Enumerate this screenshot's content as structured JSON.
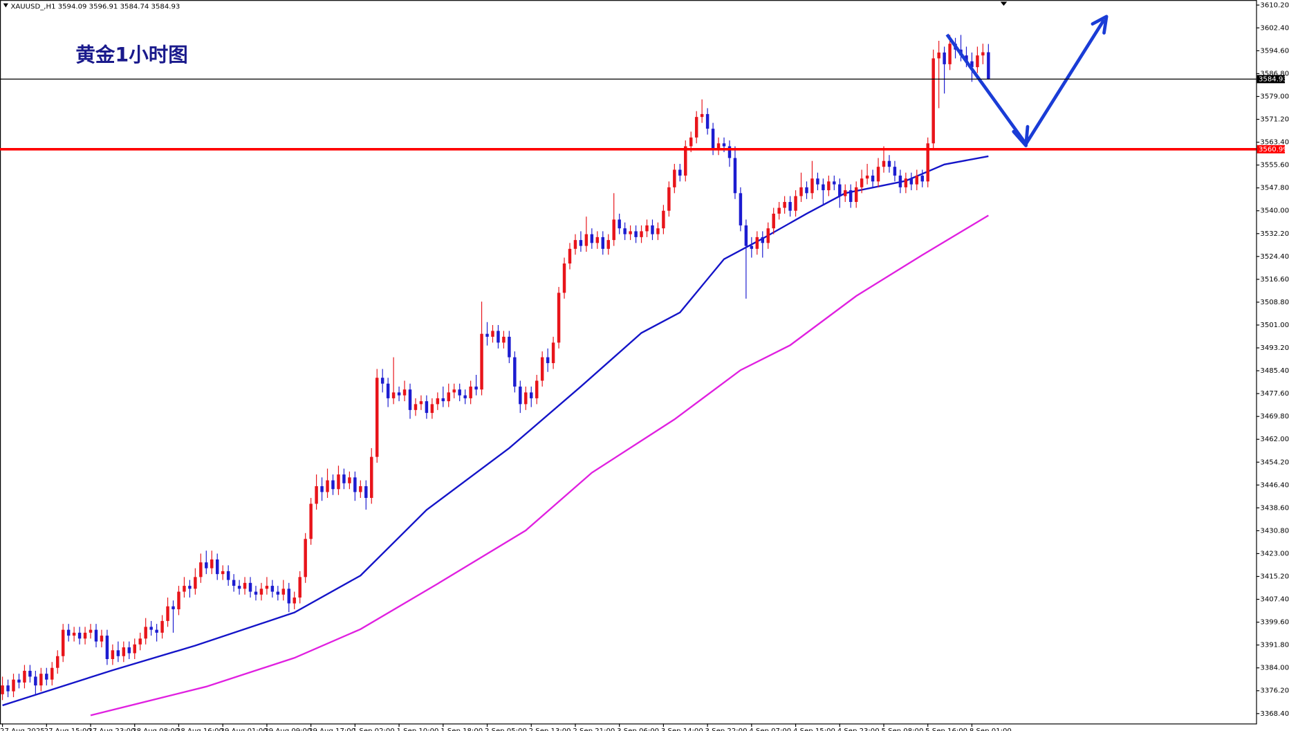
{
  "chart_data": {
    "type": "candlestick",
    "header": "XAUUSD_,H1 3594.09 3596.91 3584.74 3584.93",
    "title": "黄金1小时图",
    "up_color": "#e8141a",
    "down_color": "#1c1cd0",
    "grid": false,
    "xlim": [
      -0.45,
      227.6
    ],
    "ylim": [
      3365.0,
      3611.9
    ],
    "xticks": [
      {
        "value": 0,
        "label": "27 Aug 2025"
      },
      {
        "value": 8,
        "label": "27 Aug 15:00"
      },
      {
        "value": 16,
        "label": "27 Aug 23:00"
      },
      {
        "value": 24,
        "label": "28 Aug 08:00"
      },
      {
        "value": 32,
        "label": "28 Aug 16:00"
      },
      {
        "value": 40,
        "label": "29 Aug 01:00"
      },
      {
        "value": 48,
        "label": "29 Aug 09:00"
      },
      {
        "value": 56,
        "label": "29 Aug 17:00"
      },
      {
        "value": 64,
        "label": "1 Sep 02:00"
      },
      {
        "value": 72,
        "label": "1 Sep 10:00"
      },
      {
        "value": 80,
        "label": "1 Sep 18:00"
      },
      {
        "value": 88,
        "label": "2 Sep 05:00"
      },
      {
        "value": 96,
        "label": "2 Sep 13:00"
      },
      {
        "value": 104,
        "label": "2 Sep 21:00"
      },
      {
        "value": 112,
        "label": "3 Sep 06:00"
      },
      {
        "value": 120,
        "label": "3 Sep 14:00"
      },
      {
        "value": 128,
        "label": "3 Sep 22:00"
      },
      {
        "value": 136,
        "label": "4 Sep 07:00"
      },
      {
        "value": 144,
        "label": "4 Sep 15:00"
      },
      {
        "value": 152,
        "label": "4 Sep 23:00"
      },
      {
        "value": 160,
        "label": "5 Sep 08:00"
      },
      {
        "value": 168,
        "label": "5 Sep 16:00"
      },
      {
        "value": 176,
        "label": "8 Sep 01:00"
      }
    ],
    "yticks": [
      {
        "value": 3610.2,
        "label": "3610.20"
      },
      {
        "value": 3602.4,
        "label": "3602.40"
      },
      {
        "value": 3594.6,
        "label": "3594.60"
      },
      {
        "value": 3586.8,
        "label": "3586.80"
      },
      {
        "value": 3579,
        "label": "3579.00"
      },
      {
        "value": 3571.2,
        "label": "3571.20"
      },
      {
        "value": 3563.4,
        "label": "3563.40"
      },
      {
        "value": 3555.6,
        "label": "3555.60"
      },
      {
        "value": 3547.8,
        "label": "3547.80"
      },
      {
        "value": 3540,
        "label": "3540.00"
      },
      {
        "value": 3532.2,
        "label": "3532.20"
      },
      {
        "value": 3524.4,
        "label": "3524.40"
      },
      {
        "value": 3516.6,
        "label": "3516.60"
      },
      {
        "value": 3508.8,
        "label": "3508.80"
      },
      {
        "value": 3501,
        "label": "3501.00"
      },
      {
        "value": 3493.2,
        "label": "3493.20"
      },
      {
        "value": 3485.4,
        "label": "3485.40"
      },
      {
        "value": 3477.6,
        "label": "3477.60"
      },
      {
        "value": 3469.8,
        "label": "3469.80"
      },
      {
        "value": 3462,
        "label": "3462.00"
      },
      {
        "value": 3454.2,
        "label": "3454.20"
      },
      {
        "value": 3446.4,
        "label": "3446.40"
      },
      {
        "value": 3438.6,
        "label": "3438.60"
      },
      {
        "value": 3430.8,
        "label": "3430.80"
      },
      {
        "value": 3423,
        "label": "3423.00"
      },
      {
        "value": 3415.2,
        "label": "3415.20"
      },
      {
        "value": 3407.4,
        "label": "3407.40"
      },
      {
        "value": 3399.6,
        "label": "3399.60"
      },
      {
        "value": 3391.8,
        "label": "3391.80"
      },
      {
        "value": 3384,
        "label": "3384.00"
      },
      {
        "value": 3376.2,
        "label": "3376.20"
      },
      {
        "value": 3368.4,
        "label": "3368.40"
      }
    ],
    "hlines": [
      {
        "value": 3560.99,
        "label": "3560.99",
        "color": "#ff0000"
      },
      {
        "value": 3584.93,
        "label": "3584.93",
        "color": "#000000"
      }
    ],
    "lines": [
      {
        "color": "#1414c8",
        "x": [
          0,
          20,
          35,
          53,
          65,
          77,
          92,
          105,
          116,
          123,
          131,
          138,
          146,
          153,
          164,
          171,
          179
        ],
        "values": [
          3371.2,
          3383.2,
          3391.6,
          3402.9,
          3415.5,
          3437.9,
          3459,
          3480,
          3498.3,
          3505.3,
          3523.5,
          3530.5,
          3539,
          3546,
          3550.2,
          3555.8,
          3558.6
        ]
      },
      {
        "color": "#e020e0",
        "x": [
          16,
          37,
          53,
          65,
          79,
          95,
          107,
          122,
          134,
          143,
          155,
          167,
          179
        ],
        "values": [
          3367.8,
          3377.6,
          3387.4,
          3397.2,
          3412.7,
          3430.9,
          3450.6,
          3468.8,
          3485.6,
          3494.1,
          3510.9,
          3524.9,
          3538.4
        ]
      }
    ],
    "ohlc": [
      [
        3375,
        3381,
        3373,
        3378
      ],
      [
        3378,
        3380,
        3374,
        3376
      ],
      [
        3376,
        3382,
        3374,
        3380
      ],
      [
        3380,
        3382,
        3377,
        3379
      ],
      [
        3379,
        3385,
        3377,
        3383
      ],
      [
        3383,
        3385,
        3379,
        3381
      ],
      [
        3381,
        3383,
        3375,
        3378
      ],
      [
        3378,
        3384,
        3376,
        3382
      ],
      [
        3382,
        3384,
        3378,
        3380
      ],
      [
        3380,
        3386,
        3378,
        3384
      ],
      [
        3384,
        3390,
        3382,
        3388
      ],
      [
        3388,
        3399,
        3386,
        3397
      ],
      [
        3397,
        3399,
        3393,
        3395
      ],
      [
        3395,
        3398,
        3393,
        3396
      ],
      [
        3396,
        3398,
        3392,
        3394
      ],
      [
        3394,
        3398,
        3392,
        3396
      ],
      [
        3396,
        3399,
        3394,
        3397
      ],
      [
        3397,
        3399,
        3391,
        3393
      ],
      [
        3393,
        3397,
        3391,
        3395
      ],
      [
        3395,
        3397,
        3385,
        3387
      ],
      [
        3387,
        3392,
        3385,
        3390
      ],
      [
        3390,
        3393,
        3386,
        3388
      ],
      [
        3388,
        3393,
        3386,
        3391
      ],
      [
        3391,
        3393,
        3387,
        3389
      ],
      [
        3389,
        3394,
        3387,
        3392
      ],
      [
        3392,
        3396,
        3390,
        3394
      ],
      [
        3394,
        3401,
        3392,
        3398
      ],
      [
        3398,
        3400,
        3395,
        3397
      ],
      [
        3397,
        3399,
        3393,
        3396
      ],
      [
        3396,
        3402,
        3394,
        3400
      ],
      [
        3400,
        3408,
        3398,
        3405
      ],
      [
        3405,
        3407,
        3396,
        3404
      ],
      [
        3404,
        3412,
        3402,
        3410
      ],
      [
        3410,
        3415,
        3408,
        3412
      ],
      [
        3412,
        3414,
        3408,
        3411
      ],
      [
        3411,
        3418,
        3409,
        3415
      ],
      [
        3415,
        3423,
        3413,
        3420
      ],
      [
        3420,
        3424,
        3416,
        3418
      ],
      [
        3418,
        3424,
        3416,
        3421
      ],
      [
        3421,
        3423,
        3414,
        3416
      ],
      [
        3416,
        3419,
        3414,
        3417
      ],
      [
        3417,
        3419,
        3412,
        3414
      ],
      [
        3414,
        3416,
        3410,
        3412
      ],
      [
        3412,
        3414,
        3409,
        3411
      ],
      [
        3411,
        3415,
        3409,
        3413
      ],
      [
        3413,
        3415,
        3408,
        3410
      ],
      [
        3410,
        3412,
        3407,
        3409
      ],
      [
        3409,
        3413,
        3407,
        3411
      ],
      [
        3411,
        3415,
        3409,
        3412
      ],
      [
        3412,
        3414,
        3408,
        3410
      ],
      [
        3410,
        3412,
        3407,
        3409
      ],
      [
        3409,
        3414,
        3407,
        3411
      ],
      [
        3411,
        3413,
        3403,
        3406
      ],
      [
        3406,
        3410,
        3404,
        3408
      ],
      [
        3408,
        3417,
        3406,
        3415
      ],
      [
        3415,
        3430,
        3413,
        3428
      ],
      [
        3428,
        3442,
        3426,
        3440
      ],
      [
        3440,
        3450,
        3438,
        3446
      ],
      [
        3446,
        3449,
        3441,
        3444
      ],
      [
        3444,
        3452,
        3442,
        3448
      ],
      [
        3448,
        3450,
        3443,
        3445
      ],
      [
        3445,
        3453,
        3443,
        3450
      ],
      [
        3450,
        3452,
        3445,
        3447
      ],
      [
        3447,
        3451,
        3445,
        3449
      ],
      [
        3449,
        3451,
        3441,
        3444
      ],
      [
        3444,
        3448,
        3442,
        3446
      ],
      [
        3446,
        3448,
        3438,
        3442
      ],
      [
        3442,
        3459,
        3440,
        3456
      ],
      [
        3456,
        3486,
        3454,
        3483
      ],
      [
        3483,
        3486,
        3478,
        3481
      ],
      [
        3481,
        3483,
        3473,
        3476
      ],
      [
        3476,
        3490,
        3474,
        3478
      ],
      [
        3478,
        3480,
        3475,
        3477
      ],
      [
        3477,
        3482,
        3475,
        3479
      ],
      [
        3479,
        3481,
        3469,
        3472
      ],
      [
        3472,
        3476,
        3470,
        3474
      ],
      [
        3474,
        3477,
        3472,
        3475
      ],
      [
        3475,
        3477,
        3469,
        3471
      ],
      [
        3471,
        3476,
        3469,
        3474
      ],
      [
        3474,
        3478,
        3472,
        3476
      ],
      [
        3476,
        3480,
        3473,
        3475
      ],
      [
        3475,
        3481,
        3473,
        3478
      ],
      [
        3478,
        3481,
        3476,
        3479
      ],
      [
        3479,
        3481,
        3475,
        3477
      ],
      [
        3477,
        3479,
        3474,
        3476
      ],
      [
        3476,
        3482,
        3474,
        3480
      ],
      [
        3480,
        3484,
        3477,
        3479
      ],
      [
        3479,
        3509,
        3477,
        3498
      ],
      [
        3498,
        3502,
        3494,
        3497
      ],
      [
        3497,
        3501,
        3495,
        3499
      ],
      [
        3499,
        3501,
        3493,
        3495
      ],
      [
        3495,
        3499,
        3493,
        3497
      ],
      [
        3497,
        3499,
        3488,
        3490
      ],
      [
        3490,
        3492,
        3478,
        3480
      ],
      [
        3480,
        3482,
        3471,
        3474
      ],
      [
        3474,
        3480,
        3472,
        3478
      ],
      [
        3478,
        3480,
        3473,
        3476
      ],
      [
        3476,
        3484,
        3474,
        3482
      ],
      [
        3482,
        3492,
        3480,
        3490
      ],
      [
        3490,
        3493,
        3485,
        3488
      ],
      [
        3488,
        3497,
        3486,
        3495
      ],
      [
        3495,
        3514,
        3493,
        3512
      ],
      [
        3512,
        3524,
        3510,
        3522
      ],
      [
        3522,
        3529,
        3520,
        3527
      ],
      [
        3527,
        3532,
        3525,
        3530
      ],
      [
        3530,
        3533,
        3526,
        3528
      ],
      [
        3528,
        3538,
        3526,
        3532
      ],
      [
        3532,
        3534,
        3527,
        3529
      ],
      [
        3529,
        3533,
        3527,
        3531
      ],
      [
        3531,
        3533,
        3525,
        3527
      ],
      [
        3527,
        3532,
        3525,
        3530
      ],
      [
        3530,
        3546,
        3528,
        3537
      ],
      [
        3537,
        3539,
        3532,
        3534
      ],
      [
        3534,
        3536,
        3530,
        3532
      ],
      [
        3532,
        3535,
        3530,
        3533
      ],
      [
        3533,
        3535,
        3529,
        3531
      ],
      [
        3531,
        3535,
        3529,
        3533
      ],
      [
        3533,
        3537,
        3531,
        3535
      ],
      [
        3535,
        3537,
        3530,
        3532
      ],
      [
        3532,
        3536,
        3530,
        3534
      ],
      [
        3534,
        3542,
        3532,
        3540
      ],
      [
        3540,
        3550,
        3538,
        3548
      ],
      [
        3548,
        3556,
        3546,
        3554
      ],
      [
        3554,
        3556,
        3550,
        3552
      ],
      [
        3552,
        3564,
        3550,
        3562
      ],
      [
        3562,
        3567,
        3560,
        3565
      ],
      [
        3565,
        3574,
        3563,
        3572
      ],
      [
        3572,
        3578,
        3570,
        3573
      ],
      [
        3573,
        3575,
        3566,
        3568
      ],
      [
        3568,
        3570,
        3559,
        3561
      ],
      [
        3561,
        3565,
        3559,
        3563
      ],
      [
        3563,
        3565,
        3560,
        3562
      ],
      [
        3562,
        3564,
        3555,
        3558
      ],
      [
        3558,
        3562,
        3544,
        3546
      ],
      [
        3546,
        3548,
        3533,
        3535
      ],
      [
        3535,
        3537,
        3510,
        3528
      ],
      [
        3528,
        3531,
        3524,
        3527
      ],
      [
        3527,
        3533,
        3525,
        3531
      ],
      [
        3531,
        3533,
        3524,
        3529
      ],
      [
        3529,
        3536,
        3527,
        3534
      ],
      [
        3534,
        3541,
        3532,
        3539
      ],
      [
        3539,
        3543,
        3537,
        3541
      ],
      [
        3541,
        3545,
        3539,
        3543
      ],
      [
        3543,
        3545,
        3538,
        3540
      ],
      [
        3540,
        3547,
        3538,
        3545
      ],
      [
        3545,
        3553,
        3543,
        3548
      ],
      [
        3548,
        3550,
        3544,
        3546
      ],
      [
        3546,
        3557,
        3544,
        3551
      ],
      [
        3551,
        3553,
        3547,
        3549
      ],
      [
        3549,
        3551,
        3542,
        3547
      ],
      [
        3547,
        3552,
        3545,
        3550
      ],
      [
        3550,
        3552,
        3547,
        3549
      ],
      [
        3549,
        3551,
        3541,
        3545
      ],
      [
        3545,
        3549,
        3543,
        3547
      ],
      [
        3547,
        3549,
        3541,
        3543
      ],
      [
        3543,
        3550,
        3541,
        3548
      ],
      [
        3548,
        3554,
        3546,
        3551
      ],
      [
        3551,
        3556,
        3549,
        3552
      ],
      [
        3552,
        3554,
        3548,
        3550
      ],
      [
        3550,
        3558,
        3548,
        3555
      ],
      [
        3555,
        3562,
        3553,
        3557
      ],
      [
        3557,
        3559,
        3553,
        3555
      ],
      [
        3555,
        3557,
        3550,
        3552
      ],
      [
        3552,
        3554,
        3546,
        3548
      ],
      [
        3548,
        3553,
        3546,
        3551
      ],
      [
        3551,
        3553,
        3547,
        3549
      ],
      [
        3549,
        3554,
        3547,
        3552
      ],
      [
        3552,
        3554,
        3548,
        3550
      ],
      [
        3550,
        3565,
        3548,
        3563
      ],
      [
        3563,
        3595,
        3561,
        3592
      ],
      [
        3592,
        3598,
        3575,
        3594
      ],
      [
        3594,
        3596,
        3580,
        3590
      ],
      [
        3590,
        3600,
        3588,
        3597
      ],
      [
        3597,
        3599,
        3592,
        3595
      ],
      [
        3595,
        3600,
        3591,
        3593
      ],
      [
        3593,
        3596,
        3589,
        3591
      ],
      [
        3591,
        3594,
        3584,
        3589
      ],
      [
        3589,
        3596,
        3587,
        3593
      ],
      [
        3593,
        3597,
        3590,
        3594.09
      ],
      [
        3594.09,
        3596.91,
        3584.74,
        3584.93
      ]
    ]
  }
}
